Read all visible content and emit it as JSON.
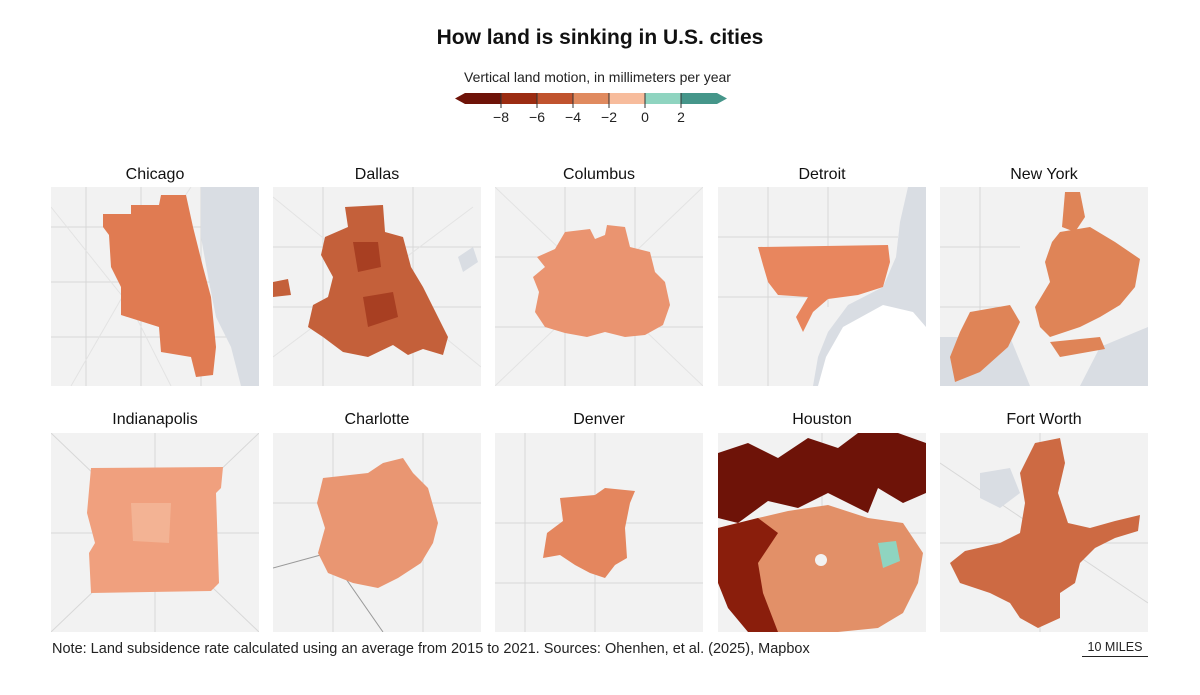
{
  "title": "How land is sinking in U.S. cities",
  "legend": {
    "title": "Vertical land motion, in millimeters per year",
    "ticks": [
      "−8",
      "−6",
      "−4",
      "−2",
      "0",
      "2"
    ],
    "colors": [
      "#6e1308",
      "#9b2c12",
      "#c0532e",
      "#e08a5f",
      "#f7bc9c",
      "#8fd4c0",
      "#45968a"
    ]
  },
  "cities": [
    {
      "name": "Chicago",
      "color": "#e07b52"
    },
    {
      "name": "Dallas",
      "color": "#c4603a"
    },
    {
      "name": "Columbus",
      "color": "#ea9470"
    },
    {
      "name": "Detroit",
      "color": "#e8865e"
    },
    {
      "name": "New York",
      "color": "#df8457"
    },
    {
      "name": "Indianapolis",
      "color": "#f0a07e"
    },
    {
      "name": "Charlotte",
      "color": "#e99672"
    },
    {
      "name": "Denver",
      "color": "#e4865e"
    },
    {
      "name": "Houston",
      "color": "#e29068"
    },
    {
      "name": "Fort Worth",
      "color": "#cd6a43"
    }
  ],
  "note": "Note: Land subsidence rate calculated using an average from 2015 to 2021. Sources: Ohenhen, et al. (2025), Mapbox",
  "scale_label": "10 MILES"
}
